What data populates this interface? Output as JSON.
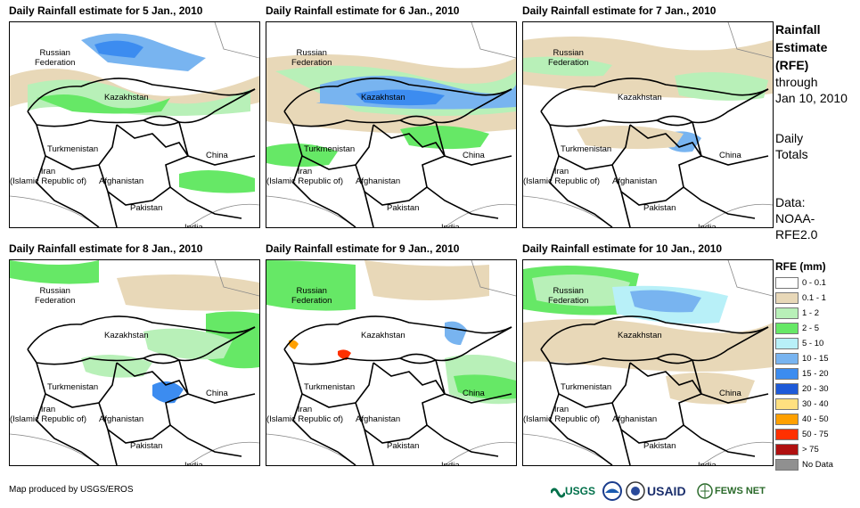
{
  "panels": [
    {
      "title": "Daily Rainfall estimate for 5 Jan., 2010"
    },
    {
      "title": "Daily Rainfall estimate for 6 Jan., 2010"
    },
    {
      "title": "Daily Rainfall estimate for 7 Jan., 2010"
    },
    {
      "title": "Daily Rainfall estimate for 8 Jan., 2010"
    },
    {
      "title": "Daily Rainfall estimate for 9 Jan., 2010"
    },
    {
      "title": "Daily Rainfall estimate for 10 Jan., 2010"
    }
  ],
  "countries": {
    "russia": "Russian\nFederation",
    "kazakhstan": "Kazakhstan",
    "turkmenistan": "Turkmenistan",
    "iran": "Iran\n(Islamic Republic of)",
    "afghanistan": "Afghanistan",
    "pakistan": "Pakistan",
    "india": "India",
    "china": "China"
  },
  "side": {
    "title_line1": "Rainfall",
    "title_line2": "Estimate",
    "title_line3": "(RFE)",
    "through": "through",
    "date": "Jan 10, 2010",
    "daily": "Daily",
    "totals": "Totals",
    "data_label": "Data:",
    "data_source_1": "NOAA-",
    "data_source_2": "RFE2.0"
  },
  "legend": {
    "title": "RFE (mm)",
    "items": [
      {
        "label": "0 - 0.1",
        "color": "#ffffff"
      },
      {
        "label": "0.1 - 1",
        "color": "#e8d8b8"
      },
      {
        "label": "1 - 2",
        "color": "#b8f0b8"
      },
      {
        "label": "2 - 5",
        "color": "#66e866"
      },
      {
        "label": "5 - 10",
        "color": "#b8f0f8"
      },
      {
        "label": "10 - 15",
        "color": "#78b4f0"
      },
      {
        "label": "15 - 20",
        "color": "#3c8cf0"
      },
      {
        "label": "20 - 30",
        "color": "#1e5ad8"
      },
      {
        "label": "30 - 40",
        "color": "#ffe080"
      },
      {
        "label": "40 - 50",
        "color": "#ffa000"
      },
      {
        "label": "50 - 75",
        "color": "#ff3000"
      },
      {
        "label": "> 75",
        "color": "#b01010"
      },
      {
        "label": "No Data",
        "color": "#909090"
      }
    ]
  },
  "footer": {
    "credit": "Map produced by USGS/EROS"
  },
  "logos": {
    "usgs": "USGS",
    "noaa": "NOAA",
    "usaid": "USAID",
    "fews": "FEWS NET"
  }
}
